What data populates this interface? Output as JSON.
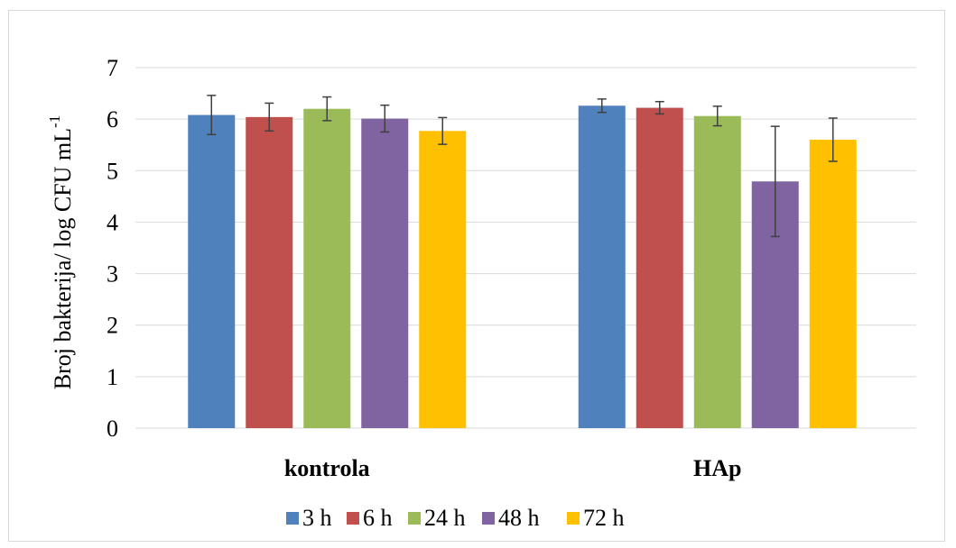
{
  "chart_data": {
    "type": "bar",
    "title": "",
    "xlabel": "",
    "ylabel": "Broj bakterija/ log CFU mL",
    "ylabel_superscript": "-1",
    "ylim": [
      0,
      7
    ],
    "yticks": [
      "0",
      "1",
      "2",
      "3",
      "4",
      "5",
      "6",
      "7"
    ],
    "categories": [
      "kontrola",
      "HAp"
    ],
    "grid": true,
    "legend_position": "bottom",
    "series": [
      {
        "name": "3 h",
        "color": "#4f81bd",
        "values": [
          6.08,
          6.26
        ],
        "errors": [
          0.38,
          0.13
        ]
      },
      {
        "name": "6 h",
        "color": "#c0504d",
        "values": [
          6.04,
          6.22
        ],
        "errors": [
          0.27,
          0.12
        ]
      },
      {
        "name": "24 h",
        "color": "#9bbb59",
        "values": [
          6.2,
          6.06
        ],
        "errors": [
          0.23,
          0.19
        ]
      },
      {
        "name": "48 h",
        "color": "#8064a2",
        "values": [
          6.01,
          4.79
        ],
        "errors": [
          0.26,
          1.07
        ]
      },
      {
        "name": "72 h",
        "color": "#ffc000",
        "values": [
          5.77,
          5.6
        ],
        "errors": [
          0.26,
          0.42
        ]
      }
    ]
  }
}
